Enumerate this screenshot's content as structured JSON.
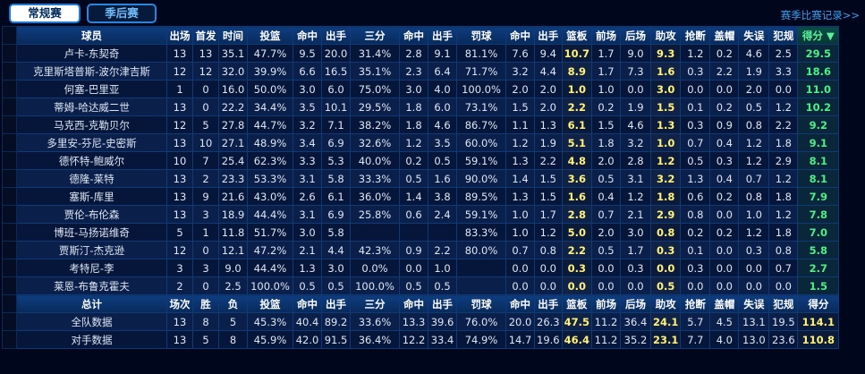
{
  "tabs": {
    "regular": "常规赛",
    "playoffs": "季后赛"
  },
  "history_link": "赛季比赛记录>>",
  "headers": [
    "球员",
    "出场",
    "首发",
    "时间",
    "投篮",
    "命中",
    "出手",
    "三分",
    "命中",
    "出手",
    "罚球",
    "命中",
    "出手",
    "篮板",
    "前场",
    "后场",
    "助攻",
    "抢断",
    "盖帽",
    "失误",
    "犯规",
    "得分 ▼"
  ],
  "players": [
    [
      "卢卡-东契奇",
      "13",
      "13",
      "35.1",
      "47.7%",
      "9.5",
      "20.0",
      "31.4%",
      "2.8",
      "9.1",
      "81.1%",
      "7.6",
      "9.4",
      "10.7",
      "1.7",
      "9.0",
      "9.3",
      "1.2",
      "0.2",
      "4.6",
      "2.5",
      "29.5"
    ],
    [
      "克里斯塔普斯-波尔津吉斯",
      "12",
      "12",
      "32.0",
      "39.9%",
      "6.6",
      "16.5",
      "35.1%",
      "2.3",
      "6.4",
      "71.7%",
      "3.2",
      "4.4",
      "8.9",
      "1.7",
      "7.3",
      "1.6",
      "0.3",
      "2.2",
      "1.9",
      "3.3",
      "18.6"
    ],
    [
      "何塞-巴里亚",
      "1",
      "0",
      "16.0",
      "50.0%",
      "3.0",
      "6.0",
      "75.0%",
      "3.0",
      "4.0",
      "100.0%",
      "2.0",
      "2.0",
      "1.0",
      "1.0",
      "0.0",
      "3.0",
      "0.0",
      "0.0",
      "2.0",
      "0.0",
      "11.0"
    ],
    [
      "蒂姆-哈达威二世",
      "13",
      "0",
      "22.2",
      "34.4%",
      "3.5",
      "10.1",
      "29.5%",
      "1.8",
      "6.0",
      "73.1%",
      "1.5",
      "2.0",
      "2.2",
      "0.2",
      "1.9",
      "1.5",
      "0.1",
      "0.2",
      "0.5",
      "1.2",
      "10.2"
    ],
    [
      "马克西-克勒贝尔",
      "12",
      "5",
      "27.8",
      "44.7%",
      "3.2",
      "7.1",
      "38.2%",
      "1.8",
      "4.6",
      "86.7%",
      "1.1",
      "1.3",
      "6.1",
      "1.5",
      "4.6",
      "1.3",
      "0.3",
      "0.9",
      "0.8",
      "2.2",
      "9.2"
    ],
    [
      "多里安-芬尼-史密斯",
      "13",
      "10",
      "27.1",
      "48.9%",
      "3.4",
      "6.9",
      "32.6%",
      "1.2",
      "3.5",
      "60.0%",
      "1.2",
      "1.9",
      "5.1",
      "1.8",
      "3.2",
      "1.0",
      "0.7",
      "0.4",
      "1.2",
      "1.8",
      "9.1"
    ],
    [
      "德怀特-鲍威尔",
      "10",
      "7",
      "25.4",
      "62.3%",
      "3.3",
      "5.3",
      "40.0%",
      "0.2",
      "0.5",
      "59.1%",
      "1.3",
      "2.2",
      "4.8",
      "2.0",
      "2.8",
      "1.2",
      "0.5",
      "0.3",
      "1.2",
      "2.9",
      "8.1"
    ],
    [
      "德隆-莱特",
      "13",
      "2",
      "23.3",
      "53.3%",
      "3.1",
      "5.8",
      "33.3%",
      "0.5",
      "1.6",
      "90.0%",
      "1.4",
      "1.5",
      "3.6",
      "0.5",
      "3.1",
      "3.2",
      "1.3",
      "0.4",
      "0.7",
      "1.2",
      "8.1"
    ],
    [
      "塞斯-库里",
      "13",
      "9",
      "21.6",
      "43.0%",
      "2.6",
      "6.1",
      "36.0%",
      "1.4",
      "3.8",
      "89.5%",
      "1.3",
      "1.5",
      "1.6",
      "0.4",
      "1.2",
      "1.8",
      "0.6",
      "0.2",
      "0.8",
      "1.8",
      "7.9"
    ],
    [
      "贾伦-布伦森",
      "13",
      "3",
      "18.9",
      "44.4%",
      "3.1",
      "6.9",
      "25.8%",
      "0.6",
      "2.4",
      "59.1%",
      "1.0",
      "1.7",
      "2.8",
      "0.7",
      "2.1",
      "2.9",
      "0.8",
      "0.0",
      "1.0",
      "1.2",
      "7.8"
    ],
    [
      "博班-马扬诺维奇",
      "5",
      "1",
      "11.8",
      "51.7%",
      "3.0",
      "5.8",
      "",
      "",
      "",
      "83.3%",
      "1.0",
      "1.2",
      "5.0",
      "2.0",
      "3.0",
      "0.8",
      "0.2",
      "0.2",
      "1.2",
      "1.8",
      "7.0"
    ],
    [
      "贾斯汀-杰克逊",
      "12",
      "0",
      "12.1",
      "47.2%",
      "2.1",
      "4.4",
      "42.3%",
      "0.9",
      "2.2",
      "80.0%",
      "0.7",
      "0.8",
      "2.2",
      "0.5",
      "1.7",
      "0.3",
      "0.1",
      "0.0",
      "0.3",
      "0.8",
      "5.8"
    ],
    [
      "考特尼-李",
      "3",
      "3",
      "9.0",
      "44.4%",
      "1.3",
      "3.0",
      "0.0%",
      "0.0",
      "1.0",
      "",
      "0.0",
      "0.0",
      "0.3",
      "0.0",
      "0.3",
      "0.0",
      "0.3",
      "0.0",
      "0.0",
      "0.7",
      "2.7"
    ],
    [
      "莱恩-布鲁克霍夫",
      "2",
      "0",
      "2.5",
      "100.0%",
      "0.5",
      "0.5",
      "100.0%",
      "0.5",
      "0.5",
      "",
      "0.0",
      "0.0",
      "0.0",
      "0.0",
      "0.0",
      "0.5",
      "0.0",
      "0.0",
      "0.0",
      "0.0",
      "1.5"
    ]
  ],
  "summary_headers": [
    "总计",
    "场次",
    "胜",
    "负",
    "投篮",
    "命中",
    "出手",
    "三分",
    "命中",
    "出手",
    "罚球",
    "命中",
    "出手",
    "篮板",
    "前场",
    "后场",
    "助攻",
    "抢断",
    "盖帽",
    "失误",
    "犯规",
    "得分"
  ],
  "summary": [
    [
      "全队数据",
      "13",
      "8",
      "5",
      "45.3%",
      "40.4",
      "89.2",
      "33.6%",
      "13.3",
      "39.6",
      "76.0%",
      "20.0",
      "26.3",
      "47.5",
      "11.2",
      "36.4",
      "24.1",
      "5.7",
      "4.5",
      "13.1",
      "19.5",
      "114.1"
    ],
    [
      "对手数据",
      "13",
      "5",
      "8",
      "45.9%",
      "42.0",
      "91.5",
      "36.4%",
      "12.2",
      "33.4",
      "74.9%",
      "14.7",
      "19.6",
      "46.4",
      "11.2",
      "35.2",
      "23.1",
      "7.7",
      "4.0",
      "13.0",
      "23.6",
      "110.8"
    ]
  ],
  "colors": {
    "background": "#00061c",
    "header": "#0d3d80",
    "highlight": "#fff27a",
    "points": "#4ef086"
  }
}
